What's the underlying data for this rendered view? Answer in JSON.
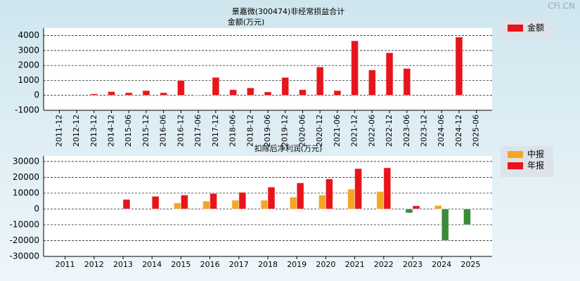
{
  "watermark": "CFi.CN",
  "chart_data": [
    {
      "type": "bar",
      "title": "景嘉微(300474)非经常损益合计",
      "y_label": "金额(万元)",
      "categories": [
        "2011-12",
        "2012-12",
        "2013-12",
        "2014-12",
        "2015-06",
        "2015-12",
        "2016-06",
        "2016-12",
        "2017-06",
        "2017-12",
        "2018-06",
        "2018-12",
        "2019-06",
        "2019-12",
        "2020-06",
        "2020-12",
        "2021-06",
        "2021-12",
        "2022-06",
        "2022-12",
        "2023-06",
        "2023-12",
        "2024-06",
        "2024-12",
        "2025-06"
      ],
      "series": [
        {
          "name": "金额",
          "color": "#e8141b",
          "values": [
            null,
            null,
            100,
            250,
            180,
            320,
            180,
            1000,
            -30,
            1200,
            380,
            500,
            230,
            1200,
            380,
            1900,
            320,
            3650,
            1700,
            2850,
            1800,
            null,
            null,
            3900,
            null
          ]
        }
      ],
      "negative_color": "#3a8a3a",
      "ylim": [
        -1000,
        4500
      ],
      "yticks": [
        -1000,
        0,
        1000,
        2000,
        3000,
        4000
      ],
      "grid": true,
      "legend": "right"
    },
    {
      "type": "bar",
      "title": "扣除后净利润(万元)",
      "categories": [
        "2011",
        "2012",
        "2013",
        "2014",
        "2015",
        "2016",
        "2017",
        "2018",
        "2019",
        "2020",
        "2021",
        "2022",
        "2023",
        "2024",
        "2025"
      ],
      "series": [
        {
          "name": "中报",
          "color": "#f5a623",
          "values": [
            null,
            null,
            null,
            null,
            3800,
            5000,
            5500,
            5500,
            7500,
            8800,
            12500,
            11000,
            -2500,
            2200,
            -10000
          ]
        },
        {
          "name": "年报",
          "color": "#e8141b",
          "values": [
            null,
            null,
            6000,
            8000,
            8800,
            9800,
            10500,
            13800,
            16500,
            19000,
            25500,
            26000,
            2000,
            -20000,
            null
          ]
        }
      ],
      "negative_color": "#3a8a3a",
      "ylim": [
        -30000,
        33500
      ],
      "yticks": [
        -30000,
        -20000,
        -10000,
        0,
        10000,
        20000,
        30000
      ],
      "grid": true,
      "legend": "right"
    }
  ]
}
